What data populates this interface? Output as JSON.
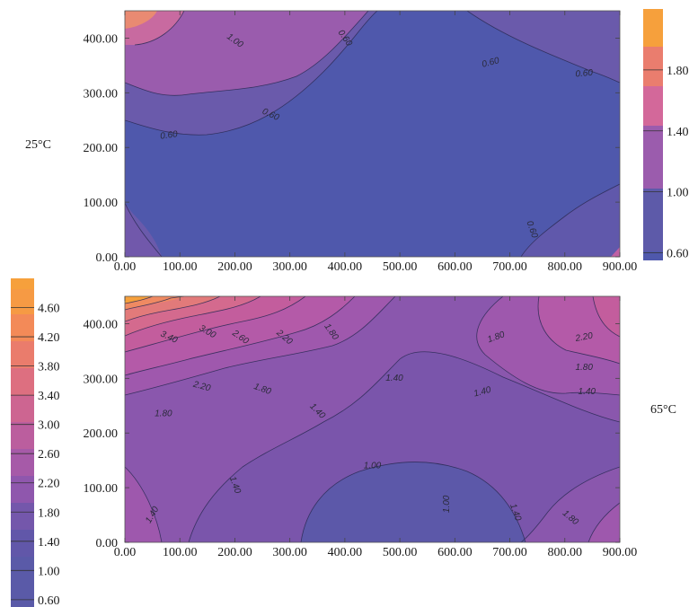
{
  "colors": {
    "level_colors": [
      "#5a5aa8",
      "#6a55ab",
      "#8558ad",
      "#9e5aac",
      "#b05aa6",
      "#c15f9c",
      "#d5688c",
      "#e7737a",
      "#f38062",
      "#f6924a",
      "#f7a53a"
    ]
  },
  "chart_data": [
    {
      "type": "heatmap",
      "subtype": "contour",
      "side_label": "25°C",
      "x_ticks": [
        "0.00",
        "100.00",
        "200.00",
        "300.00",
        "400.00",
        "500.00",
        "600.00",
        "700.00",
        "800.00",
        "900.00"
      ],
      "y_ticks": [
        "0.00",
        "100.00",
        "200.00",
        "300.00",
        "400.00"
      ],
      "xlim": [
        0,
        900
      ],
      "ylim": [
        0,
        450
      ],
      "colorbar_ticks": [
        "0.60",
        "1.00",
        "1.40",
        "1.80"
      ],
      "colorbar_range": [
        0.55,
        2.2
      ],
      "contour_levels": [
        0.6,
        1.0,
        1.4,
        1.8
      ],
      "contour_labels": [
        {
          "text": "0.60",
          "x": 80,
          "y": 222,
          "angle": 8
        },
        {
          "text": "0.60",
          "x": 265,
          "y": 260,
          "angle": -25
        },
        {
          "text": "0.60",
          "x": 400,
          "y": 400,
          "angle": -55
        },
        {
          "text": "1.00",
          "x": 200,
          "y": 395,
          "angle": -35
        },
        {
          "text": "0.60",
          "x": 665,
          "y": 355,
          "angle": 15
        },
        {
          "text": "0.60",
          "x": 835,
          "y": 335,
          "angle": 5
        },
        {
          "text": "0.60",
          "x": 740,
          "y": 50,
          "angle": -70
        }
      ]
    },
    {
      "type": "heatmap",
      "subtype": "contour",
      "side_label": "65°C",
      "x_ticks": [
        "0.00",
        "100.00",
        "200.00",
        "300.00",
        "400.00",
        "500.00",
        "600.00",
        "700.00",
        "800.00",
        "900.00"
      ],
      "y_ticks": [
        "0.00",
        "100.00",
        "200.00",
        "300.00",
        "400.00"
      ],
      "xlim": [
        0,
        900
      ],
      "ylim": [
        0,
        450
      ],
      "colorbar_ticks": [
        "0.60",
        "1.00",
        "1.40",
        "1.80",
        "2.20",
        "2.60",
        "3.00",
        "3.40",
        "3.80",
        "4.20",
        "4.60"
      ],
      "colorbar_range": [
        0.5,
        5.0
      ],
      "contour_levels": [
        1.0,
        1.4,
        1.8,
        2.2,
        2.6,
        3.0,
        3.4
      ],
      "contour_labels": [
        {
          "text": "3.40",
          "x": 80,
          "y": 375,
          "angle": -25
        },
        {
          "text": "3.00",
          "x": 150,
          "y": 385,
          "angle": -30
        },
        {
          "text": "2.60",
          "x": 210,
          "y": 375,
          "angle": -35
        },
        {
          "text": "2.20",
          "x": 290,
          "y": 375,
          "angle": -40
        },
        {
          "text": "1.80",
          "x": 375,
          "y": 385,
          "angle": -55
        },
        {
          "text": "2.20",
          "x": 140,
          "y": 285,
          "angle": -15
        },
        {
          "text": "1.80",
          "x": 250,
          "y": 280,
          "angle": -20
        },
        {
          "text": "1.80",
          "x": 70,
          "y": 235,
          "angle": 0
        },
        {
          "text": "1.40",
          "x": 350,
          "y": 240,
          "angle": -45
        },
        {
          "text": "1.40",
          "x": 490,
          "y": 300,
          "angle": 0
        },
        {
          "text": "1.80",
          "x": 675,
          "y": 375,
          "angle": 20
        },
        {
          "text": "2.20",
          "x": 835,
          "y": 375,
          "angle": 10
        },
        {
          "text": "1.80",
          "x": 835,
          "y": 320,
          "angle": 0
        },
        {
          "text": "1.40",
          "x": 650,
          "y": 275,
          "angle": 15
        },
        {
          "text": "1.40",
          "x": 840,
          "y": 275,
          "angle": 0
        },
        {
          "text": "1.00",
          "x": 450,
          "y": 140,
          "angle": 0
        },
        {
          "text": "1.40",
          "x": 200,
          "y": 105,
          "angle": -70
        },
        {
          "text": "1.00",
          "x": 585,
          "y": 70,
          "angle": 90
        },
        {
          "text": "1.40",
          "x": 50,
          "y": 50,
          "angle": 60
        },
        {
          "text": "1.40",
          "x": 710,
          "y": 55,
          "angle": -70
        },
        {
          "text": "1.80",
          "x": 810,
          "y": 45,
          "angle": -40
        }
      ]
    }
  ]
}
